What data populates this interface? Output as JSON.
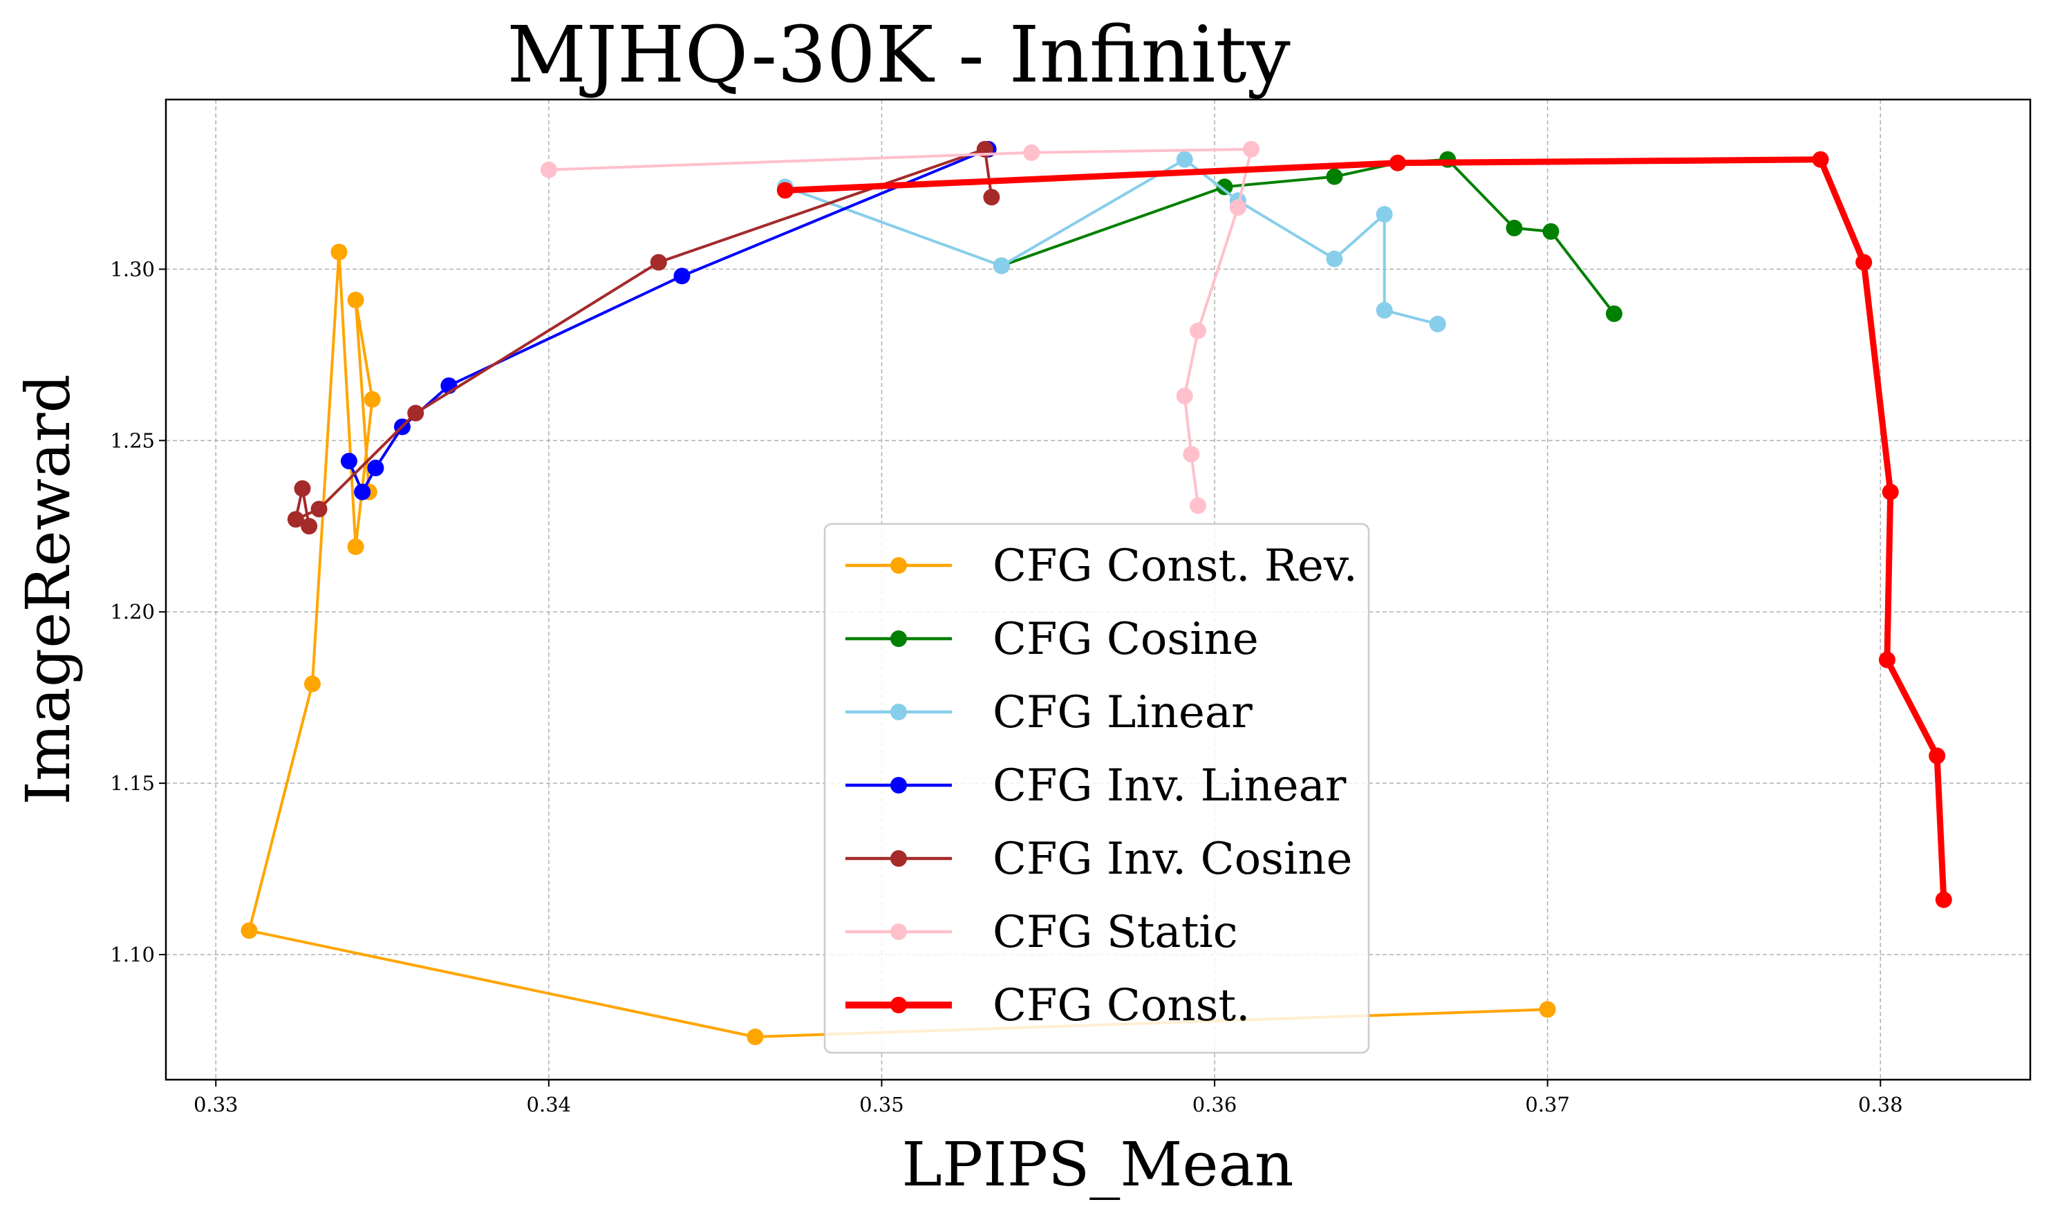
{
  "chart_data": {
    "type": "line",
    "title": "MJHQ-30K - Infinity",
    "xlabel": "LPIPS_Mean",
    "ylabel": "ImageReward",
    "xlim": [
      0.3285,
      0.3845
    ],
    "ylim": [
      1.0635,
      1.3495
    ],
    "xticks": [
      0.33,
      0.34,
      0.35,
      0.36,
      0.37,
      0.38
    ],
    "xtick_labels": [
      "0.33",
      "0.34",
      "0.35",
      "0.36",
      "0.37",
      "0.38"
    ],
    "yticks": [
      1.1,
      1.15,
      1.2,
      1.25,
      1.3
    ],
    "ytick_labels": [
      "1.10",
      "1.15",
      "1.20",
      "1.25",
      "1.30"
    ],
    "grid": true,
    "legend_position": "center-bottom",
    "series": [
      {
        "name": "CFG Const. Rev.",
        "color": "#ffa500",
        "width": "normal",
        "x": [
          0.3346,
          0.3342,
          0.3347,
          0.3342,
          0.3337,
          0.3329,
          0.331,
          0.3462,
          0.37
        ],
        "y": [
          1.235,
          1.291,
          1.262,
          1.219,
          1.305,
          1.179,
          1.107,
          1.076,
          1.084
        ]
      },
      {
        "name": "CFG Cosine",
        "color": "#008000",
        "width": "normal",
        "x": [
          0.372,
          0.3701,
          0.369,
          0.367,
          0.3655,
          0.3636,
          0.3603,
          0.3536
        ],
        "y": [
          1.287,
          1.311,
          1.312,
          1.332,
          1.331,
          1.327,
          1.324,
          1.301
        ]
      },
      {
        "name": "CFG Linear",
        "color": "#87ceeb",
        "width": "normal",
        "x": [
          0.3667,
          0.3651,
          0.3651,
          0.3636,
          0.3607,
          0.3591,
          0.3536,
          0.3471
        ],
        "y": [
          1.284,
          1.288,
          1.316,
          1.303,
          1.32,
          1.332,
          1.301,
          1.324
        ]
      },
      {
        "name": "CFG Inv. Linear",
        "color": "#0000ff",
        "width": "normal",
        "x": [
          0.3532,
          0.344,
          0.337,
          0.3356,
          0.3348,
          0.3344,
          0.334
        ],
        "y": [
          1.335,
          1.298,
          1.266,
          1.254,
          1.242,
          1.235,
          1.244
        ]
      },
      {
        "name": "CFG Inv. Cosine",
        "color": "#a52a2a",
        "width": "normal",
        "x": [
          0.3533,
          0.3531,
          0.3433,
          0.336,
          0.3331,
          0.3324,
          0.3326,
          0.3328
        ],
        "y": [
          1.321,
          1.335,
          1.302,
          1.258,
          1.23,
          1.227,
          1.236,
          1.225
        ]
      },
      {
        "name": "CFG Static",
        "color": "#ffc0cb",
        "width": "normal",
        "x": [
          0.3595,
          0.3593,
          0.3591,
          0.3595,
          0.3607,
          0.3611,
          0.3545,
          0.34
        ],
        "y": [
          1.231,
          1.246,
          1.263,
          1.282,
          1.318,
          1.335,
          1.334,
          1.329
        ]
      },
      {
        "name": "CFG Const.",
        "color": "#ff0000",
        "width": "thick",
        "x": [
          0.3471,
          0.3655,
          0.3782,
          0.3795,
          0.3803,
          0.3802,
          0.3817,
          0.3819
        ],
        "y": [
          1.323,
          1.331,
          1.332,
          1.302,
          1.235,
          1.186,
          1.158,
          1.116
        ]
      }
    ]
  }
}
